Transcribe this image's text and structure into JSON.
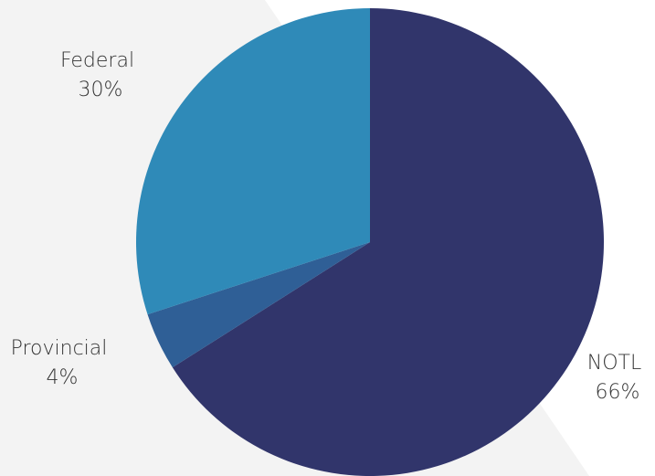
{
  "colors": {
    "background_band": "#f3f3f3"
  },
  "chart_data": {
    "type": "pie",
    "title": "",
    "legend": "none",
    "slices": [
      {
        "name": "NOTL",
        "value": 66,
        "value_label": "66%",
        "color": "#31356b"
      },
      {
        "name": "Provincial",
        "value": 4,
        "value_label": "4%",
        "color": "#2f5f96"
      },
      {
        "name": "Federal",
        "value": 30,
        "value_label": "30%",
        "color": "#2f8ab8"
      }
    ]
  }
}
